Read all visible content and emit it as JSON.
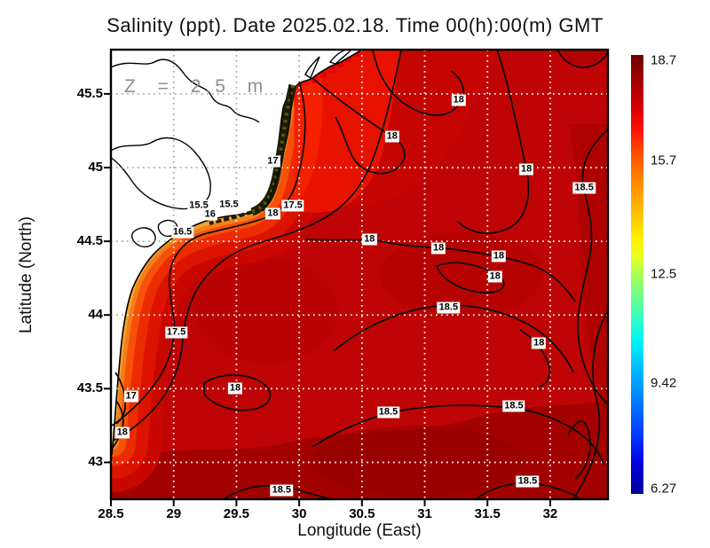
{
  "chart_data": {
    "type": "heatmap",
    "subtype": "filled_contour_map",
    "title": "Salinity (ppt). Date 2025.02.18. Time 00(h):00(m) GMT",
    "annotation": "Z = 2.5 m",
    "xlabel": "Longitude (East)",
    "ylabel": "Latitude (North)",
    "axes": {
      "x": {
        "min": 28.5,
        "max": 32.46,
        "ticks": [
          28.5,
          29,
          29.5,
          30,
          30.5,
          31,
          31.5,
          32
        ]
      },
      "y": {
        "min": 42.75,
        "max": 45.8,
        "ticks": [
          45.5,
          45,
          44.5,
          44,
          43.5,
          43
        ]
      }
    },
    "colorbar": {
      "min": 6.27,
      "max": 18.7,
      "ticks": [
        18.7,
        15.7,
        12.5,
        9.42,
        6.27
      ],
      "colors": [
        {
          "f": 0.0,
          "c": "#6E0000"
        },
        {
          "f": 0.03,
          "c": "#8A0000"
        },
        {
          "f": 0.08,
          "c": "#B40000"
        },
        {
          "f": 0.13,
          "c": "#E00000"
        },
        {
          "f": 0.17,
          "c": "#FF1000"
        },
        {
          "f": 0.22,
          "c": "#FF4A00"
        },
        {
          "f": 0.27,
          "c": "#FF7800"
        },
        {
          "f": 0.32,
          "c": "#FFA000"
        },
        {
          "f": 0.37,
          "c": "#FFC800"
        },
        {
          "f": 0.42,
          "c": "#FFF000"
        },
        {
          "f": 0.46,
          "c": "#E8FF20"
        },
        {
          "f": 0.5,
          "c": "#AAFF55"
        },
        {
          "f": 0.55,
          "c": "#6EFF8C"
        },
        {
          "f": 0.6,
          "c": "#30FFC4"
        },
        {
          "f": 0.65,
          "c": "#00F4F4"
        },
        {
          "f": 0.7,
          "c": "#00C8FF"
        },
        {
          "f": 0.76,
          "c": "#0096FF"
        },
        {
          "f": 0.82,
          "c": "#0060FF"
        },
        {
          "f": 0.88,
          "c": "#002CFF"
        },
        {
          "f": 0.93,
          "c": "#0000E0"
        },
        {
          "f": 1.0,
          "c": "#000096"
        }
      ]
    },
    "contour_levels": [
      15.5,
      16,
      16.5,
      17,
      17.5,
      18,
      18.5
    ],
    "contour_labels": [
      {
        "value": "17",
        "lon": 29.79,
        "lat": 45.04
      },
      {
        "value": "17.5",
        "lon": 29.95,
        "lat": 44.74
      },
      {
        "value": "18",
        "lon": 29.79,
        "lat": 44.69
      },
      {
        "value": "15.5",
        "lon": 29.2,
        "lat": 44.74
      },
      {
        "value": "15.5",
        "lon": 29.44,
        "lat": 44.75
      },
      {
        "value": "16",
        "lon": 29.29,
        "lat": 44.68
      },
      {
        "value": "16.5",
        "lon": 29.07,
        "lat": 44.56
      },
      {
        "value": "17.5",
        "lon": 29.02,
        "lat": 43.88
      },
      {
        "value": "17",
        "lon": 28.66,
        "lat": 43.45
      },
      {
        "value": "18",
        "lon": 28.59,
        "lat": 43.2
      },
      {
        "value": "18",
        "lon": 29.49,
        "lat": 43.5
      },
      {
        "value": "18.5",
        "lon": 29.86,
        "lat": 42.81
      },
      {
        "value": "18",
        "lon": 30.74,
        "lat": 45.21
      },
      {
        "value": "18",
        "lon": 31.27,
        "lat": 45.46
      },
      {
        "value": "18",
        "lon": 31.81,
        "lat": 44.99
      },
      {
        "value": "18.5",
        "lon": 32.27,
        "lat": 44.86
      },
      {
        "value": "18",
        "lon": 30.56,
        "lat": 44.51
      },
      {
        "value": "18",
        "lon": 31.11,
        "lat": 44.45
      },
      {
        "value": "18",
        "lon": 31.59,
        "lat": 44.4
      },
      {
        "value": "18",
        "lon": 31.56,
        "lat": 44.26
      },
      {
        "value": "18.5",
        "lon": 31.19,
        "lat": 44.05
      },
      {
        "value": "18",
        "lon": 31.91,
        "lat": 43.81
      },
      {
        "value": "18.5",
        "lon": 30.71,
        "lat": 43.34
      },
      {
        "value": "18.5",
        "lon": 31.71,
        "lat": 43.38
      },
      {
        "value": "18.5",
        "lon": 31.82,
        "lat": 42.87
      }
    ]
  }
}
